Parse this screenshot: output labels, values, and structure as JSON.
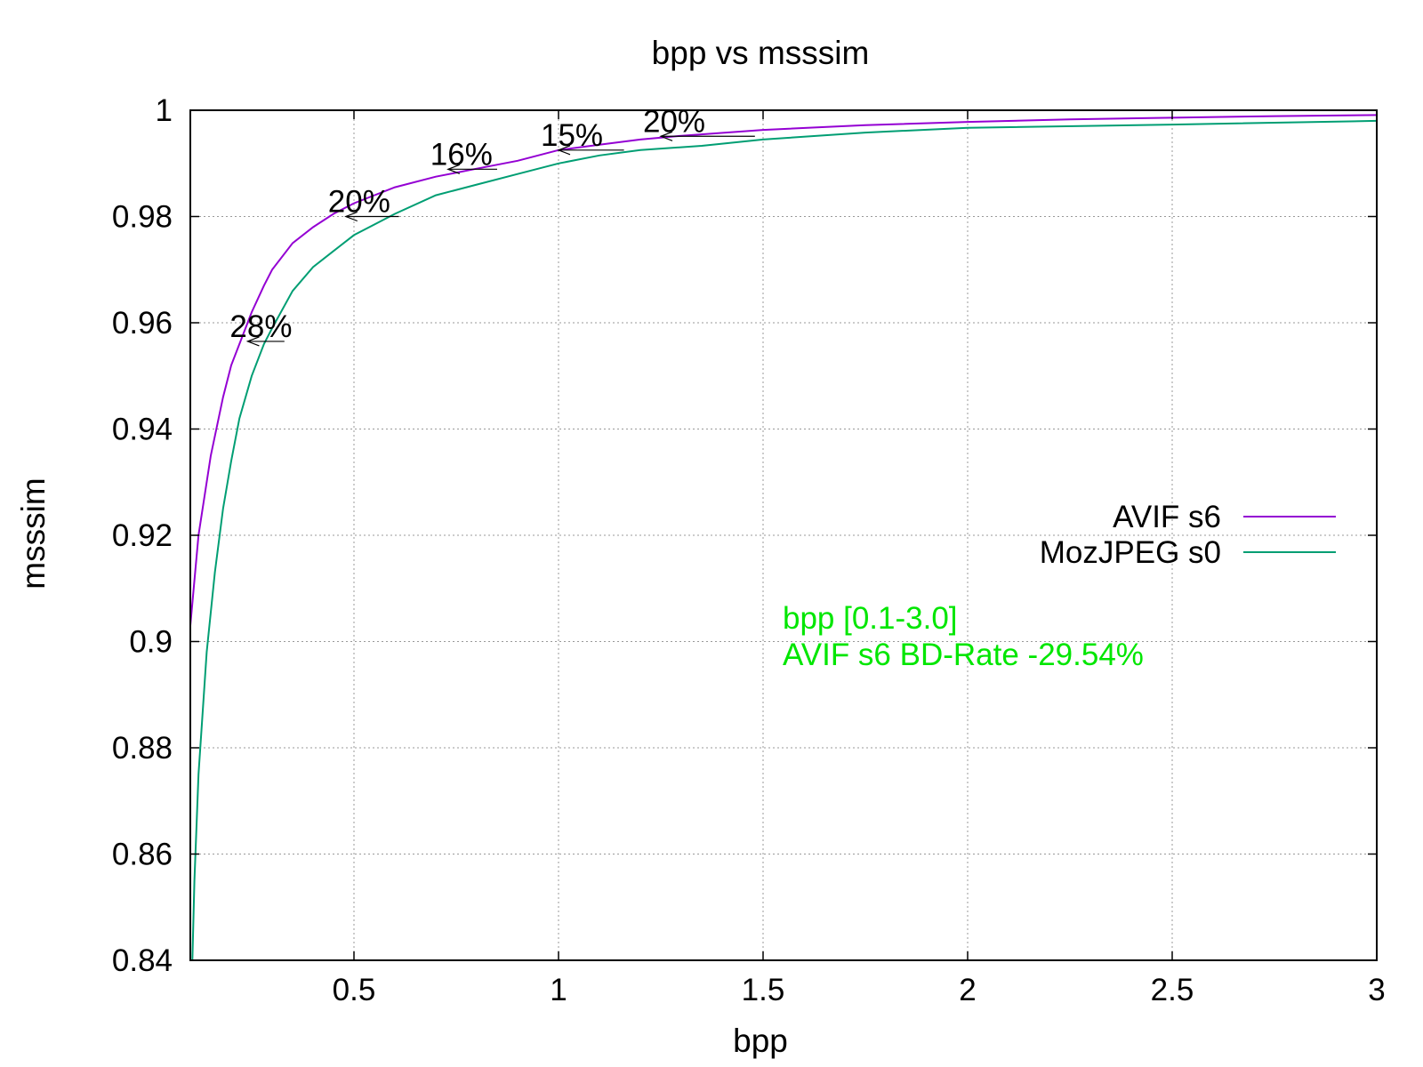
{
  "chart_data": {
    "type": "line",
    "title": "bpp vs msssim",
    "xlabel": "bpp",
    "ylabel": "msssim",
    "xlim": [
      0.1,
      3.0
    ],
    "ylim": [
      0.84,
      1.0
    ],
    "grid": true,
    "legend_position": "right",
    "x_ticks": [
      {
        "value": 0.5,
        "label": "0.5"
      },
      {
        "value": 1.0,
        "label": "1"
      },
      {
        "value": 1.5,
        "label": "1.5"
      },
      {
        "value": 2.0,
        "label": "2"
      },
      {
        "value": 2.5,
        "label": "2.5"
      },
      {
        "value": 3.0,
        "label": "3"
      }
    ],
    "y_ticks": [
      {
        "value": 0.84,
        "label": "0.84"
      },
      {
        "value": 0.86,
        "label": "0.86"
      },
      {
        "value": 0.88,
        "label": "0.88"
      },
      {
        "value": 0.9,
        "label": "0.9"
      },
      {
        "value": 0.92,
        "label": "0.92"
      },
      {
        "value": 0.94,
        "label": "0.94"
      },
      {
        "value": 0.96,
        "label": "0.96"
      },
      {
        "value": 0.98,
        "label": "0.98"
      },
      {
        "value": 1.0,
        "label": "1"
      }
    ],
    "series": [
      {
        "name": "AVIF s6",
        "color": "#9400d3",
        "x": [
          0.1,
          0.12,
          0.15,
          0.18,
          0.2,
          0.23,
          0.25,
          0.28,
          0.3,
          0.35,
          0.4,
          0.45,
          0.5,
          0.6,
          0.7,
          0.8,
          0.9,
          1.0,
          1.1,
          1.2,
          1.3,
          1.5,
          1.75,
          2.0,
          2.25,
          2.5,
          2.75,
          3.0
        ],
        "y": [
          0.903,
          0.92,
          0.935,
          0.946,
          0.952,
          0.958,
          0.962,
          0.967,
          0.97,
          0.975,
          0.978,
          0.9805,
          0.9825,
          0.9855,
          0.9875,
          0.989,
          0.9905,
          0.9925,
          0.9935,
          0.9945,
          0.9952,
          0.9963,
          0.9972,
          0.9978,
          0.9983,
          0.9986,
          0.9989,
          0.9991
        ]
      },
      {
        "name": "MozJPEG s0",
        "color": "#009e73",
        "x": [
          0.105,
          0.11,
          0.12,
          0.14,
          0.16,
          0.18,
          0.2,
          0.22,
          0.25,
          0.28,
          0.3,
          0.35,
          0.4,
          0.45,
          0.5,
          0.6,
          0.7,
          0.8,
          0.9,
          1.0,
          1.1,
          1.2,
          1.35,
          1.5,
          1.75,
          2.0,
          2.5,
          3.0
        ],
        "y": [
          0.84,
          0.855,
          0.875,
          0.898,
          0.913,
          0.925,
          0.934,
          0.942,
          0.95,
          0.956,
          0.959,
          0.966,
          0.9705,
          0.9735,
          0.9765,
          0.9805,
          0.984,
          0.986,
          0.988,
          0.99,
          0.9915,
          0.9925,
          0.9933,
          0.9945,
          0.9958,
          0.9967,
          0.9973,
          0.998
        ]
      }
    ],
    "annotations": [
      {
        "label": "28%",
        "from_x": 0.33,
        "to_x": 0.24,
        "y": 0.9565
      },
      {
        "label": "20%",
        "from_x": 0.61,
        "to_x": 0.48,
        "y": 0.98
      },
      {
        "label": "16%",
        "from_x": 0.85,
        "to_x": 0.73,
        "y": 0.9889
      },
      {
        "label": "15%",
        "from_x": 1.16,
        "to_x": 1.0,
        "y": 0.9925
      },
      {
        "label": "20%",
        "from_x": 1.48,
        "to_x": 1.25,
        "y": 0.9951
      }
    ],
    "info_color": "#00e600",
    "info_lines": [
      "bpp [0.1-3.0]",
      "AVIF s6 BD-Rate -29.54%"
    ]
  }
}
